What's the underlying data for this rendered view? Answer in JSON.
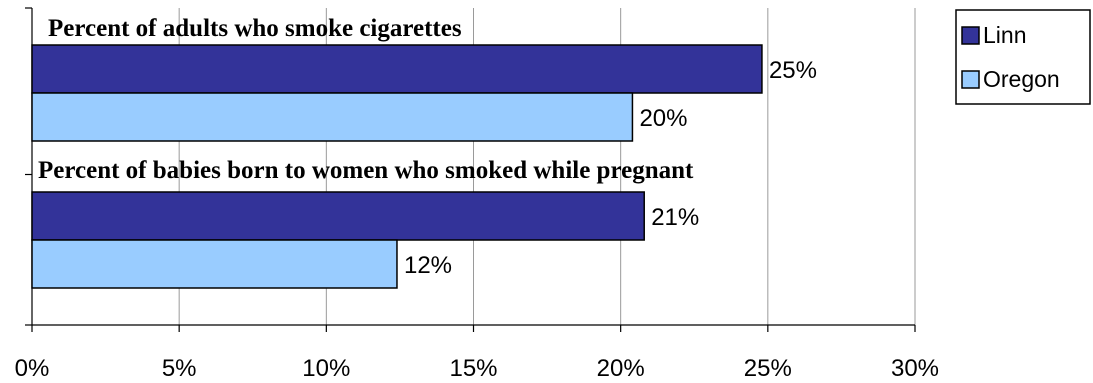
{
  "chart_data": {
    "type": "bar",
    "orientation": "horizontal",
    "categories": [
      "Percent of adults who smoke cigarettes",
      "Percent of babies born to women who smoked while pregnant"
    ],
    "series": [
      {
        "name": "Linn",
        "values": [
          24.8,
          20.8
        ],
        "labels": [
          "25%",
          "21%"
        ],
        "color": "#333399"
      },
      {
        "name": "Oregon",
        "values": [
          20.4,
          12.4
        ],
        "labels": [
          "20%",
          "12%"
        ],
        "color": "#99CCFF"
      }
    ],
    "xlim": [
      0,
      30
    ],
    "xticks": [
      {
        "value": 0,
        "label": "0%"
      },
      {
        "value": 5,
        "label": "5%"
      },
      {
        "value": 10,
        "label": "10%"
      },
      {
        "value": 15,
        "label": "15%"
      },
      {
        "value": 20,
        "label": "20%"
      },
      {
        "value": 25,
        "label": "25%"
      },
      {
        "value": 30,
        "label": "30%"
      }
    ],
    "grid": true,
    "legend": "top-right",
    "title": "",
    "xlabel": "",
    "ylabel": ""
  }
}
